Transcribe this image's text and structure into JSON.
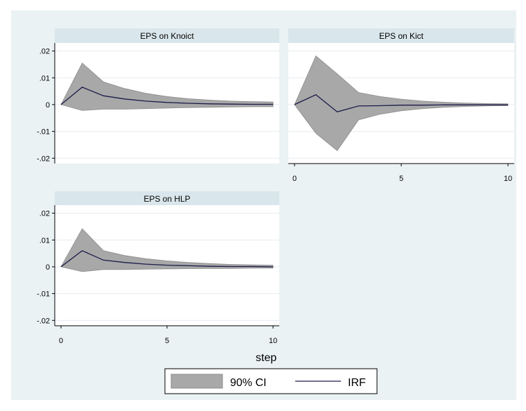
{
  "colors": {
    "outer_bg": "#eaf2f3",
    "plot_bg": "#ffffff",
    "title_bg": "#d9e6eb",
    "ci_fill": "#a8a8a8",
    "ci_stroke": "#8c8c8c",
    "irf_line": "#1a1a4a",
    "grid": "#e5ecef",
    "axis": "#000000"
  },
  "chart_data": [
    {
      "type": "area",
      "title": "EPS on Knoict",
      "x": [
        0,
        1,
        2,
        3,
        4,
        5,
        6,
        7,
        8,
        9,
        10
      ],
      "series": [
        {
          "name": "IRF",
          "values": [
            0,
            0.0065,
            0.0033,
            0.0021,
            0.0013,
            0.0008,
            0.0005,
            0.0003,
            0.0002,
            0.0001,
            0.0001
          ]
        },
        {
          "name": "90% CI lower",
          "values": [
            0,
            -0.0022,
            -0.0017,
            -0.0017,
            -0.0015,
            -0.0013,
            -0.0011,
            -0.001,
            -0.0009,
            -0.0008,
            -0.0008
          ]
        },
        {
          "name": "90% CI upper",
          "values": [
            0,
            0.0155,
            0.0085,
            0.006,
            0.0042,
            0.003,
            0.0022,
            0.0017,
            0.0013,
            0.0011,
            0.001
          ]
        }
      ],
      "yticks": [
        ".02",
        ".01",
        "0",
        "-.01",
        "-.02"
      ],
      "ytick_values": [
        0.02,
        0.01,
        0,
        -0.01,
        -0.02
      ],
      "ylim": [
        -0.022,
        0.023
      ],
      "xlim": [
        0,
        10
      ],
      "show_y_axis": true,
      "show_x_axis": false
    },
    {
      "type": "area",
      "title": "EPS on Kict",
      "x": [
        0,
        1,
        2,
        3,
        4,
        5,
        6,
        7,
        8,
        9,
        10
      ],
      "series": [
        {
          "name": "IRF",
          "values": [
            0,
            0.0037,
            -0.0027,
            -0.0005,
            -0.0004,
            -0.0002,
            -0.0002,
            -0.0001,
            -0.0001,
            -0.0001,
            -0.0001
          ]
        },
        {
          "name": "90% CI lower",
          "values": [
            0,
            -0.0107,
            -0.0172,
            -0.0057,
            -0.0036,
            -0.0023,
            -0.0015,
            -0.001,
            -0.0007,
            -0.0005,
            -0.0004
          ]
        },
        {
          "name": "90% CI upper",
          "values": [
            0,
            0.0182,
            0.0115,
            0.0045,
            0.003,
            0.002,
            0.0013,
            0.0009,
            0.0006,
            0.0004,
            0.0003
          ]
        }
      ],
      "xticks": [
        "0",
        "5",
        "10"
      ],
      "xtick_values": [
        0,
        5,
        10
      ],
      "ylim": [
        -0.022,
        0.023
      ],
      "xlim": [
        0,
        10
      ],
      "show_y_axis": false,
      "show_x_axis": true
    },
    {
      "type": "area",
      "title": "EPS on HLP",
      "x": [
        0,
        1,
        2,
        3,
        4,
        5,
        6,
        7,
        8,
        9,
        10
      ],
      "series": [
        {
          "name": "IRF",
          "values": [
            0,
            0.006,
            0.0025,
            0.0016,
            0.001,
            0.0006,
            0.0004,
            0.0002,
            0.0001,
            0.0001,
            0.0
          ]
        },
        {
          "name": "90% CI lower",
          "values": [
            0,
            -0.0018,
            -0.001,
            -0.001,
            -0.0009,
            -0.0008,
            -0.0007,
            -0.0006,
            -0.0006,
            -0.0005,
            -0.0005
          ]
        },
        {
          "name": "90% CI upper",
          "values": [
            0,
            0.0142,
            0.006,
            0.0042,
            0.003,
            0.0022,
            0.0016,
            0.0012,
            0.0009,
            0.0007,
            0.0006
          ]
        }
      ],
      "yticks": [
        ".02",
        ".01",
        "0",
        "-.01",
        "-.02"
      ],
      "ytick_values": [
        0.02,
        0.01,
        0,
        -0.01,
        -0.02
      ],
      "xticks": [
        "0",
        "5",
        "10"
      ],
      "xtick_values": [
        0,
        5,
        10
      ],
      "ylim": [
        -0.022,
        0.023
      ],
      "xlim": [
        0,
        10
      ],
      "show_y_axis": true,
      "show_x_axis": true
    }
  ],
  "xlabel": "step",
  "legend": {
    "placement": "bottom-center",
    "items": [
      {
        "label": "90% CI",
        "kind": "area"
      },
      {
        "label": "IRF",
        "kind": "line"
      }
    ]
  }
}
